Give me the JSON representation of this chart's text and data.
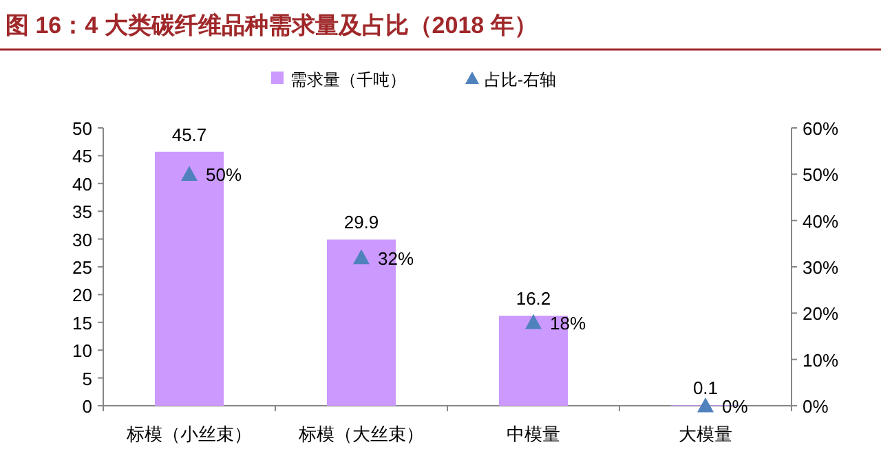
{
  "chart_data": {
    "type": "bar",
    "title": "图 16：4 大类碳纤维品种需求量及占比（2018 年）",
    "categories": [
      "标模（小丝束）",
      "标模（大丝束）",
      "中模量",
      "大模量"
    ],
    "series": [
      {
        "name": "需求量（千吨）",
        "color": "#cc99ff",
        "values": [
          45.7,
          29.9,
          16.2,
          0.1
        ],
        "value_labels": [
          "45.7",
          "29.9",
          "16.2",
          "0.1"
        ]
      },
      {
        "name": "占比-右轴",
        "type": "scatter",
        "axis": "y2",
        "marker": "triangle",
        "color": "#4f81bd",
        "values": [
          50,
          32,
          18,
          0
        ],
        "value_labels": [
          "50%",
          "32%",
          "18%",
          "0%"
        ]
      }
    ],
    "ylim": [
      0,
      50
    ],
    "yticks": [
      0,
      5,
      10,
      15,
      20,
      25,
      30,
      35,
      40,
      45,
      50
    ],
    "y2lim": [
      0,
      60
    ],
    "y2ticks": [
      {
        "value": 0,
        "label": "0%"
      },
      {
        "value": 10,
        "label": "10%"
      },
      {
        "value": 20,
        "label": "20%"
      },
      {
        "value": 30,
        "label": "30%"
      },
      {
        "value": 40,
        "label": "40%"
      },
      {
        "value": 50,
        "label": "50%"
      },
      {
        "value": 60,
        "label": "60%"
      }
    ],
    "legend": "top",
    "grid": false
  }
}
